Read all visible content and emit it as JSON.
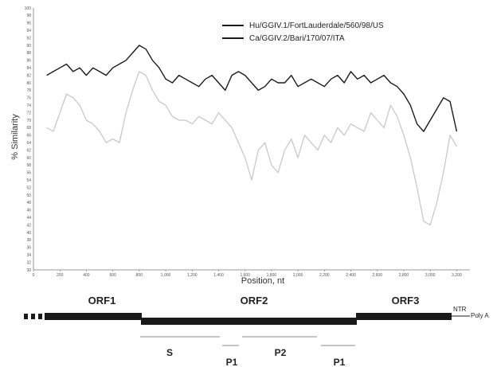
{
  "chart_data": {
    "type": "line",
    "xlabel": "Position, nt",
    "ylabel": "% Similarity",
    "xlim": [
      0,
      3300
    ],
    "ylim": [
      30,
      100
    ],
    "x_ticks": [
      "0",
      "200",
      "400",
      "600",
      "800",
      "1,000",
      "1,200",
      "1,400",
      "1,600",
      "1,800",
      "2,000",
      "2,200",
      "2,400",
      "2,600",
      "2,800",
      "3,000",
      "3,200"
    ],
    "y_ticks": [
      "30",
      "32",
      "34",
      "36",
      "38",
      "40",
      "42",
      "44",
      "46",
      "48",
      "50",
      "52",
      "54",
      "56",
      "58",
      "60",
      "62",
      "64",
      "66",
      "68",
      "70",
      "72",
      "74",
      "76",
      "78",
      "80",
      "82",
      "84",
      "86",
      "88",
      "90",
      "92",
      "94",
      "96",
      "98",
      "100"
    ],
    "grid": false,
    "legend_position": "top-right",
    "series": [
      {
        "name": "Hu/GGIV.1/FortLauderdale/560/98/US",
        "color": "#1a1a1a",
        "x": [
          100,
          150,
          200,
          250,
          300,
          350,
          400,
          450,
          500,
          550,
          600,
          650,
          700,
          750,
          800,
          850,
          900,
          950,
          1000,
          1050,
          1100,
          1150,
          1200,
          1250,
          1300,
          1350,
          1400,
          1450,
          1500,
          1550,
          1600,
          1650,
          1700,
          1750,
          1800,
          1850,
          1900,
          1950,
          2000,
          2050,
          2100,
          2150,
          2200,
          2250,
          2300,
          2350,
          2400,
          2450,
          2500,
          2550,
          2600,
          2650,
          2700,
          2750,
          2800,
          2850,
          2900,
          2950,
          3000,
          3050,
          3100,
          3150,
          3200
        ],
        "y": [
          82,
          83,
          84,
          85,
          83,
          84,
          82,
          84,
          83,
          82,
          84,
          85,
          86,
          88,
          90,
          89,
          86,
          84,
          81,
          80,
          82,
          81,
          80,
          79,
          81,
          82,
          80,
          78,
          82,
          83,
          82,
          80,
          78,
          79,
          81,
          80,
          80,
          82,
          79,
          80,
          81,
          80,
          79,
          81,
          82,
          80,
          83,
          81,
          82,
          80,
          81,
          82,
          80,
          79,
          77,
          74,
          69,
          67,
          70,
          73,
          76,
          75,
          67
        ]
      },
      {
        "name": "Ca/GGIV.2/Bari/170/07/ITA",
        "color": "#c8c8c8",
        "x": [
          100,
          150,
          200,
          250,
          300,
          350,
          400,
          450,
          500,
          550,
          600,
          650,
          700,
          750,
          800,
          850,
          900,
          950,
          1000,
          1050,
          1100,
          1150,
          1200,
          1250,
          1300,
          1350,
          1400,
          1450,
          1500,
          1550,
          1600,
          1650,
          1700,
          1750,
          1800,
          1850,
          1900,
          1950,
          2000,
          2050,
          2100,
          2150,
          2200,
          2250,
          2300,
          2350,
          2400,
          2450,
          2500,
          2550,
          2600,
          2650,
          2700,
          2750,
          2800,
          2850,
          2900,
          2950,
          3000,
          3050,
          3100,
          3150,
          3200
        ],
        "y": [
          68,
          67,
          72,
          77,
          76,
          74,
          70,
          69,
          67,
          64,
          65,
          64,
          72,
          78,
          83,
          82,
          78,
          75,
          74,
          71,
          70,
          70,
          69,
          71,
          70,
          69,
          72,
          70,
          68,
          64,
          60,
          54,
          62,
          64,
          58,
          56,
          62,
          65,
          60,
          66,
          64,
          62,
          66,
          64,
          68,
          66,
          69,
          68,
          67,
          72,
          70,
          68,
          74,
          71,
          66,
          60,
          52,
          43,
          42,
          48,
          56,
          66,
          63
        ]
      }
    ]
  },
  "genome_map": {
    "orf_labels": [
      "ORF1",
      "ORF2",
      "ORF3"
    ],
    "region_labels": [
      "S",
      "P1",
      "P2",
      "P1"
    ],
    "ntr_label": "NTR",
    "poly_label": "Poly A"
  }
}
